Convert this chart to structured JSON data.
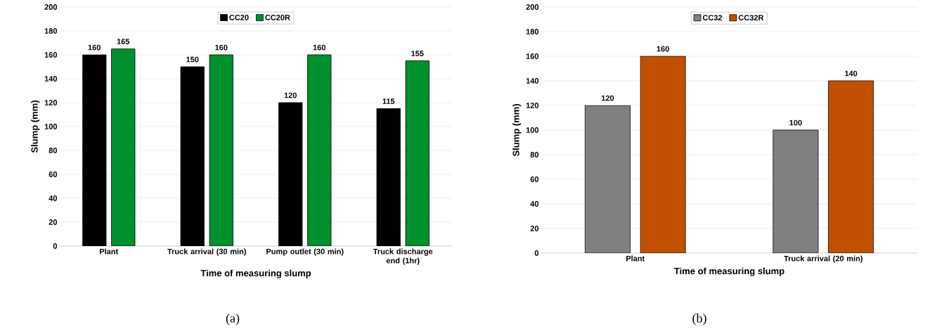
{
  "chart_data": [
    {
      "type": "bar",
      "ylabel": "Slump (mm)",
      "xlabel": "Time of measuring slump",
      "categories": [
        "Plant",
        "Truck arrival (30 min)",
        "Pump outlet (30 min)",
        "Truck discharge end (1hr)"
      ],
      "series": [
        {
          "name": "CC20",
          "color": "#000000",
          "values": [
            160,
            150,
            120,
            115
          ]
        },
        {
          "name": "CC20R",
          "color": "#00902e",
          "values": [
            165,
            160,
            160,
            155
          ]
        }
      ],
      "ylim": [
        0,
        200
      ],
      "yticks": [
        0,
        20,
        40,
        60,
        80,
        100,
        120,
        140,
        160,
        180,
        200
      ],
      "grid": "y",
      "legend": "top",
      "data_labels": true,
      "annotations": [
        "(a)"
      ]
    },
    {
      "type": "bar",
      "ylabel": "Slump (mm)",
      "xlabel": "Time of measuring slump",
      "categories": [
        "Plant",
        "Truck arrival (20 min)"
      ],
      "series": [
        {
          "name": "CC32",
          "color": "#808080",
          "values": [
            120,
            100
          ]
        },
        {
          "name": "CC32R",
          "color": "#c05000",
          "values": [
            160,
            140
          ]
        }
      ],
      "ylim": [
        0,
        200
      ],
      "yticks": [
        0,
        20,
        40,
        60,
        80,
        100,
        120,
        140,
        160,
        180,
        200
      ],
      "grid": "y",
      "legend": "top",
      "data_labels": true,
      "annotations": [
        "(b)"
      ]
    }
  ]
}
